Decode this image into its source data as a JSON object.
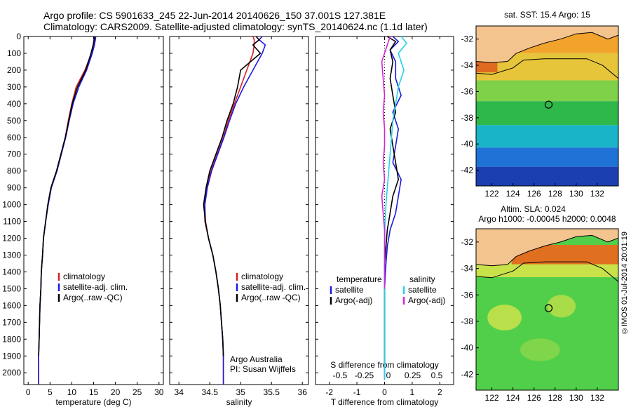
{
  "header": {
    "line1": "Argo profile: CS 5901633_245 22-Jun-2014 20140626_150 37.001S 127.381E",
    "line2": "Climatology: CARS2009. Satellite-adjusted climatology: synTS_20140624.nc (1.1d later)"
  },
  "colors": {
    "climatology": "#d62020",
    "satellite": "#1a1adf",
    "argo": "#000000",
    "sal_satellite": "#22d3e6",
    "sal_argo": "#d624d6"
  },
  "chart_data": [
    {
      "type": "line",
      "panel": "temperature",
      "xlabel": "temperature (deg C)",
      "xlim": [
        -1,
        31
      ],
      "xticks": [
        0,
        5,
        10,
        15,
        20,
        25,
        30
      ],
      "ylim": [
        2070,
        0
      ],
      "yticks": [
        0,
        100,
        200,
        300,
        400,
        500,
        600,
        700,
        800,
        900,
        1000,
        1100,
        1200,
        1300,
        1400,
        1500,
        1600,
        1700,
        1800,
        1900,
        2000
      ],
      "legend": [
        "climatology",
        "satellite-adj. clim.",
        "Argo(..raw -QC)"
      ],
      "series": [
        {
          "name": "climatology",
          "color": "#d62020",
          "x": [
            15.3,
            15.2,
            15.0,
            14.5,
            13.0,
            11.0,
            10.0,
            9.2,
            8.5,
            7.5,
            6.5,
            5.2,
            4.5,
            4.0,
            3.5,
            3.3,
            3.0,
            2.9,
            2.7,
            2.6,
            2.5,
            2.4,
            2.4
          ],
          "y": [
            0,
            20,
            50,
            100,
            200,
            300,
            400,
            500,
            600,
            700,
            800,
            900,
            1000,
            1100,
            1200,
            1300,
            1400,
            1500,
            1600,
            1700,
            1800,
            1900,
            2070
          ]
        },
        {
          "name": "satellite-adj. clim.",
          "color": "#1a1adf",
          "x": [
            15.5,
            15.4,
            15.2,
            14.7,
            13.4,
            11.6,
            10.3,
            9.4,
            8.6,
            7.6,
            6.6,
            5.3,
            4.6,
            4.0,
            3.5,
            3.3,
            3.0,
            2.9,
            2.7,
            2.6,
            2.5,
            2.4,
            2.4
          ],
          "y": [
            0,
            20,
            50,
            100,
            200,
            300,
            400,
            500,
            600,
            700,
            800,
            900,
            1000,
            1100,
            1200,
            1300,
            1400,
            1500,
            1600,
            1700,
            1800,
            1900,
            2070
          ]
        },
        {
          "name": "Argo(..raw -QC)",
          "color": "#000000",
          "x": [
            15.2,
            15.1,
            14.9,
            14.4,
            13.2,
            11.3,
            10.1,
            9.3,
            8.5,
            7.5,
            6.5,
            5.2,
            4.5,
            4.0,
            3.5,
            3.3,
            3.0,
            2.9,
            2.7,
            2.6,
            2.5,
            2.4
          ],
          "y": [
            0,
            20,
            50,
            100,
            200,
            300,
            400,
            500,
            600,
            700,
            800,
            900,
            1000,
            1100,
            1200,
            1300,
            1400,
            1500,
            1600,
            1700,
            1800,
            1900
          ]
        }
      ]
    },
    {
      "type": "line",
      "panel": "salinity",
      "xlabel": "salinity",
      "xlim": [
        33.85,
        36.1
      ],
      "xticks": [
        34,
        34.5,
        35,
        35.5,
        36
      ],
      "ylim": [
        2070,
        0
      ],
      "legend": [
        "climatology",
        "satellite-adj. clim.",
        "Argo(..raw -QC)"
      ],
      "annotation": [
        "Argo Australia",
        "PI: Susan Wijffels"
      ],
      "series": [
        {
          "name": "climatology",
          "color": "#d62020",
          "x": [
            35.2,
            35.22,
            35.22,
            35.2,
            35.1,
            35.0,
            34.9,
            34.8,
            34.72,
            34.62,
            34.52,
            34.45,
            34.41,
            34.42,
            34.48,
            34.55,
            34.6,
            34.64,
            34.67,
            34.69,
            34.71,
            34.72,
            34.72
          ],
          "y": [
            0,
            20,
            50,
            100,
            200,
            300,
            400,
            500,
            600,
            700,
            800,
            900,
            1000,
            1100,
            1200,
            1300,
            1400,
            1500,
            1600,
            1700,
            1800,
            1900,
            2070
          ]
        },
        {
          "name": "satellite-adj. clim.",
          "color": "#1a1adf",
          "x": [
            35.35,
            35.3,
            35.4,
            35.35,
            35.2,
            35.05,
            34.92,
            34.82,
            34.73,
            34.63,
            34.53,
            34.46,
            34.42,
            34.43,
            34.48,
            34.55,
            34.6,
            34.64,
            34.67,
            34.69,
            34.71,
            34.72,
            34.72
          ],
          "y": [
            0,
            20,
            50,
            100,
            200,
            300,
            400,
            500,
            600,
            700,
            800,
            900,
            1000,
            1100,
            1200,
            1300,
            1400,
            1500,
            1600,
            1700,
            1800,
            1900,
            2070
          ]
        },
        {
          "name": "Argo(..raw -QC)",
          "color": "#000000",
          "x": [
            35.25,
            35.3,
            35.2,
            35.32,
            35.0,
            34.95,
            34.88,
            34.78,
            34.7,
            34.6,
            34.5,
            34.44,
            34.4,
            34.43,
            34.48,
            34.55,
            34.6,
            34.64,
            34.67,
            34.69,
            34.71,
            34.72
          ],
          "y": [
            0,
            20,
            50,
            100,
            200,
            300,
            400,
            500,
            600,
            700,
            800,
            900,
            1000,
            1100,
            1200,
            1300,
            1400,
            1500,
            1600,
            1700,
            1800,
            1900
          ]
        }
      ]
    },
    {
      "type": "line",
      "panel": "difference",
      "xlabel": "T difference from climatology",
      "top_label": "S difference from climatology",
      "xlim": [
        -2.5,
        2.5
      ],
      "xticks": [
        -2,
        -1,
        0,
        1,
        2
      ],
      "top_ticks": [
        "-0.5",
        "-0.25",
        "0",
        "0.25",
        "0.5"
      ],
      "ylim": [
        2070,
        0
      ],
      "legend_t": [
        "temperature",
        "satellite",
        "Argo(-adj)"
      ],
      "legend_s": [
        "salinity",
        "satellite",
        "Argo(-adj)"
      ],
      "series": [
        {
          "name": "temperature satellite",
          "color": "#1a1adf",
          "x": [
            0.3,
            0.5,
            0.2,
            0.4,
            0.4,
            0.6,
            0.3,
            0.5,
            0.4,
            0.3,
            0.6,
            0.5,
            0.4,
            0.2,
            0.1,
            0.05,
            0,
            0,
            0,
            0,
            0
          ],
          "y": [
            0,
            30,
            80,
            150,
            250,
            350,
            450,
            550,
            650,
            750,
            850,
            950,
            1050,
            1150,
            1250,
            1350,
            1500,
            1650,
            1800,
            1950,
            2040
          ]
        },
        {
          "name": "temperature Argo(-adj)",
          "color": "#000000",
          "x": [
            0.1,
            0.4,
            0.2,
            0.3,
            0.2,
            0.3,
            0.4,
            0.2,
            0.3,
            0.4,
            0.5,
            0.3,
            0.2,
            0.1,
            0.05,
            0,
            0,
            0,
            0,
            0
          ],
          "y": [
            0,
            30,
            80,
            150,
            250,
            350,
            450,
            550,
            650,
            750,
            850,
            950,
            1050,
            1150,
            1250,
            1350,
            1500,
            1650,
            1800,
            1950
          ]
        },
        {
          "name": "salinity satellite",
          "color": "#22d3e6",
          "x": [
            0.6,
            0.8,
            0.5,
            0.7,
            0.5,
            0.4,
            0.3,
            0.25,
            0.2,
            0.15,
            0.1,
            0.05,
            0.02,
            0,
            0,
            0,
            0
          ],
          "y": [
            0,
            40,
            100,
            200,
            300,
            400,
            500,
            600,
            700,
            800,
            900,
            1000,
            1100,
            1250,
            1500,
            1800,
            2040
          ]
        },
        {
          "name": "salinity Argo(-adj)",
          "color": "#d624d6",
          "x": [
            0.2,
            0.1,
            -0.1,
            -0.05,
            0.0,
            -0.05,
            0.0,
            0.0,
            -0.05,
            0.0,
            -0.1,
            -0.05,
            0,
            0,
            0
          ],
          "y": [
            0,
            50,
            150,
            250,
            350,
            450,
            550,
            650,
            750,
            850,
            950,
            1050,
            1150,
            1300,
            1500
          ]
        }
      ]
    }
  ],
  "maps": [
    {
      "title": "sat. SST: 15.4 Argo: 15",
      "xticks": [
        122,
        124,
        126,
        128,
        130,
        132
      ],
      "yticks": [
        -32,
        -34,
        -36,
        -38,
        -40,
        -42
      ],
      "marker": [
        127.381,
        -37.001
      ]
    },
    {
      "title_line1": "Altim. SLA: 0.024",
      "title_line2": "Argo h1000: -0.00045 h2000: 0.0048",
      "xticks": [
        122,
        124,
        126,
        128,
        130,
        132
      ],
      "yticks": [
        -32,
        -34,
        -36,
        -38,
        -40,
        -42
      ],
      "marker": [
        127.381,
        -37.001
      ]
    }
  ],
  "side_label": "©IMOS 01-Jul-2014 20:01:19"
}
